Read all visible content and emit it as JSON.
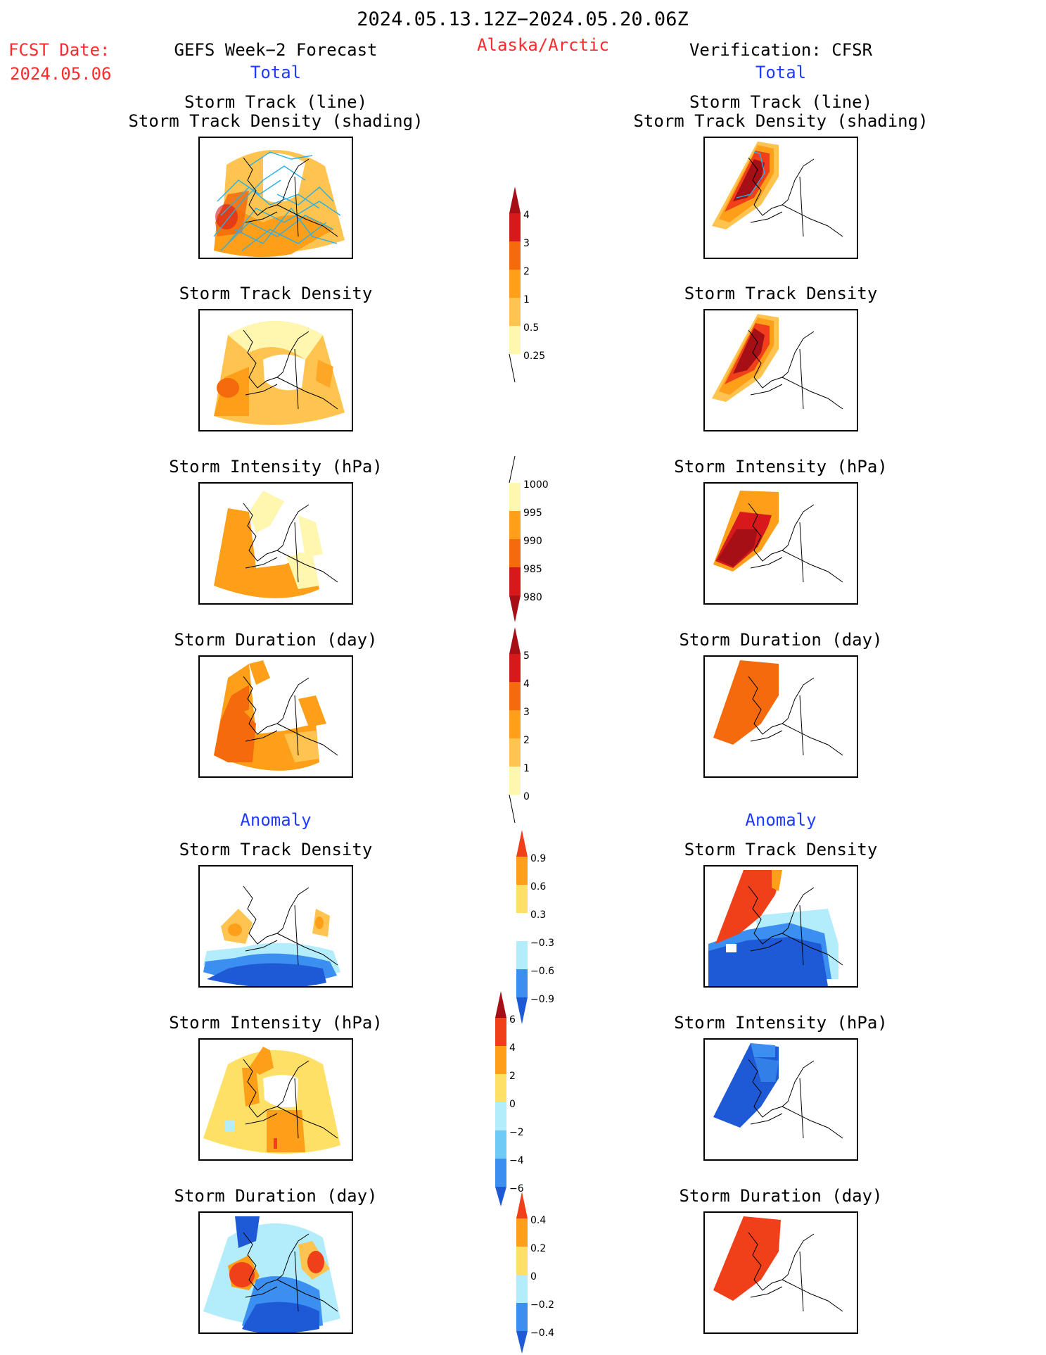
{
  "header": {
    "date_range": "2024.05.13.12Z−2024.05.20.06Z",
    "region": "Alaska/Arctic",
    "fcst_label": "FCST Date:",
    "fcst_date": "2024.05.06",
    "left_title": "GEFS Week−2 Forecast",
    "right_title": "Verification: CFSR",
    "left_subtitle": "Total",
    "right_subtitle": "Total",
    "left_anomaly": "Anomaly",
    "right_anomaly": "Anomaly"
  },
  "panel_titles": {
    "track_line": "Storm Track (line)",
    "track_shading": "Storm Track Density (shading)",
    "density": "Storm Track Density",
    "intensity": "Storm Intensity (hPa)",
    "duration": "Storm Duration (day)"
  },
  "colors": {
    "pale_yellow": "#fff7b0",
    "light_yellow": "#ffe066",
    "yellow_orange": "#fec44f",
    "orange": "#fe9f1a",
    "dark_orange": "#f46a0c",
    "red_orange": "#f0401a",
    "red": "#d7191c",
    "dark_red": "#a50f15",
    "light_blue": "#b3ecfb",
    "sky_blue": "#6ecbf5",
    "mid_blue": "#3a8ff0",
    "dark_blue": "#1f5ad6",
    "navy_blue": "#1240b8",
    "track_line": "#2ab0e6",
    "coast_line": "#000000"
  },
  "chart_data": [
    {
      "type": "heatmap",
      "title": "Storm Track (line) / Storm Track Density (shading)",
      "source": "GEFS Week-2 Forecast",
      "values_summary": [
        0.5,
        1,
        2,
        3
      ]
    },
    {
      "type": "heatmap",
      "title": "Storm Track Density",
      "source": "GEFS Week-2 Forecast",
      "values_summary": [
        0.25,
        0.5,
        1,
        2
      ]
    },
    {
      "type": "heatmap",
      "title": "Storm Intensity (hPa)",
      "source": "GEFS Week-2 Forecast",
      "values_summary": [
        1000,
        995,
        990
      ]
    },
    {
      "type": "heatmap",
      "title": "Storm Duration (day)",
      "source": "GEFS Week-2 Forecast",
      "values_summary": [
        1,
        2,
        3
      ]
    },
    {
      "type": "heatmap",
      "title": "Anomaly Storm Track Density",
      "source": "GEFS Week-2 Forecast",
      "values_summary": [
        -0.9,
        -0.6,
        -0.3,
        0.3,
        0.6
      ]
    },
    {
      "type": "heatmap",
      "title": "Anomaly Storm Intensity (hPa)",
      "source": "GEFS Week-2 Forecast",
      "values_summary": [
        -2,
        0,
        2,
        4
      ]
    },
    {
      "type": "heatmap",
      "title": "Anomaly Storm Duration (day)",
      "source": "GEFS Week-2 Forecast",
      "values_summary": [
        -0.4,
        -0.2,
        0.2,
        0.4
      ]
    },
    {
      "type": "heatmap",
      "title": "Storm Track (line) / Storm Track Density (shading)",
      "source": "Verification: CFSR",
      "values_summary": [
        0.5,
        1,
        2,
        3,
        4
      ]
    },
    {
      "type": "heatmap",
      "title": "Storm Track Density",
      "source": "Verification: CFSR",
      "values_summary": [
        0.5,
        1,
        2,
        3,
        4
      ]
    },
    {
      "type": "heatmap",
      "title": "Storm Intensity (hPa)",
      "source": "Verification: CFSR",
      "values_summary": [
        995,
        990,
        985,
        980
      ]
    },
    {
      "type": "heatmap",
      "title": "Storm Duration (day)",
      "source": "Verification: CFSR",
      "values_summary": [
        3
      ]
    },
    {
      "type": "heatmap",
      "title": "Anomaly Storm Track Density",
      "source": "Verification: CFSR",
      "values_summary": [
        -0.9,
        -0.6,
        -0.3,
        0.3,
        0.6,
        0.9
      ]
    },
    {
      "type": "heatmap",
      "title": "Anomaly Storm Intensity (hPa)",
      "source": "Verification: CFSR",
      "values_summary": [
        -2,
        -4,
        -6
      ]
    },
    {
      "type": "heatmap",
      "title": "Anomaly Storm Duration (day)",
      "source": "Verification: CFSR",
      "values_summary": [
        0.4
      ]
    }
  ],
  "colorbars": [
    {
      "name": "track-density-bar",
      "labels": [
        "4",
        "3",
        "2",
        "1",
        "0.5",
        "0.25"
      ]
    },
    {
      "name": "intensity-bar",
      "labels": [
        "1000",
        "995",
        "990",
        "985",
        "980"
      ]
    },
    {
      "name": "duration-bar",
      "labels": [
        "5",
        "4",
        "3",
        "2",
        "1",
        "0"
      ]
    },
    {
      "name": "density-anomaly-bar",
      "labels": [
        "0.9",
        "0.6",
        "0.3",
        "−0.3",
        "−0.6",
        "−0.9"
      ]
    },
    {
      "name": "intensity-anomaly-bar",
      "labels": [
        "6",
        "4",
        "2",
        "0",
        "−2",
        "−4",
        "−6"
      ]
    },
    {
      "name": "duration-anomaly-bar",
      "labels": [
        "0.4",
        "0.2",
        "0",
        "−0.2",
        "−0.4"
      ]
    }
  ]
}
